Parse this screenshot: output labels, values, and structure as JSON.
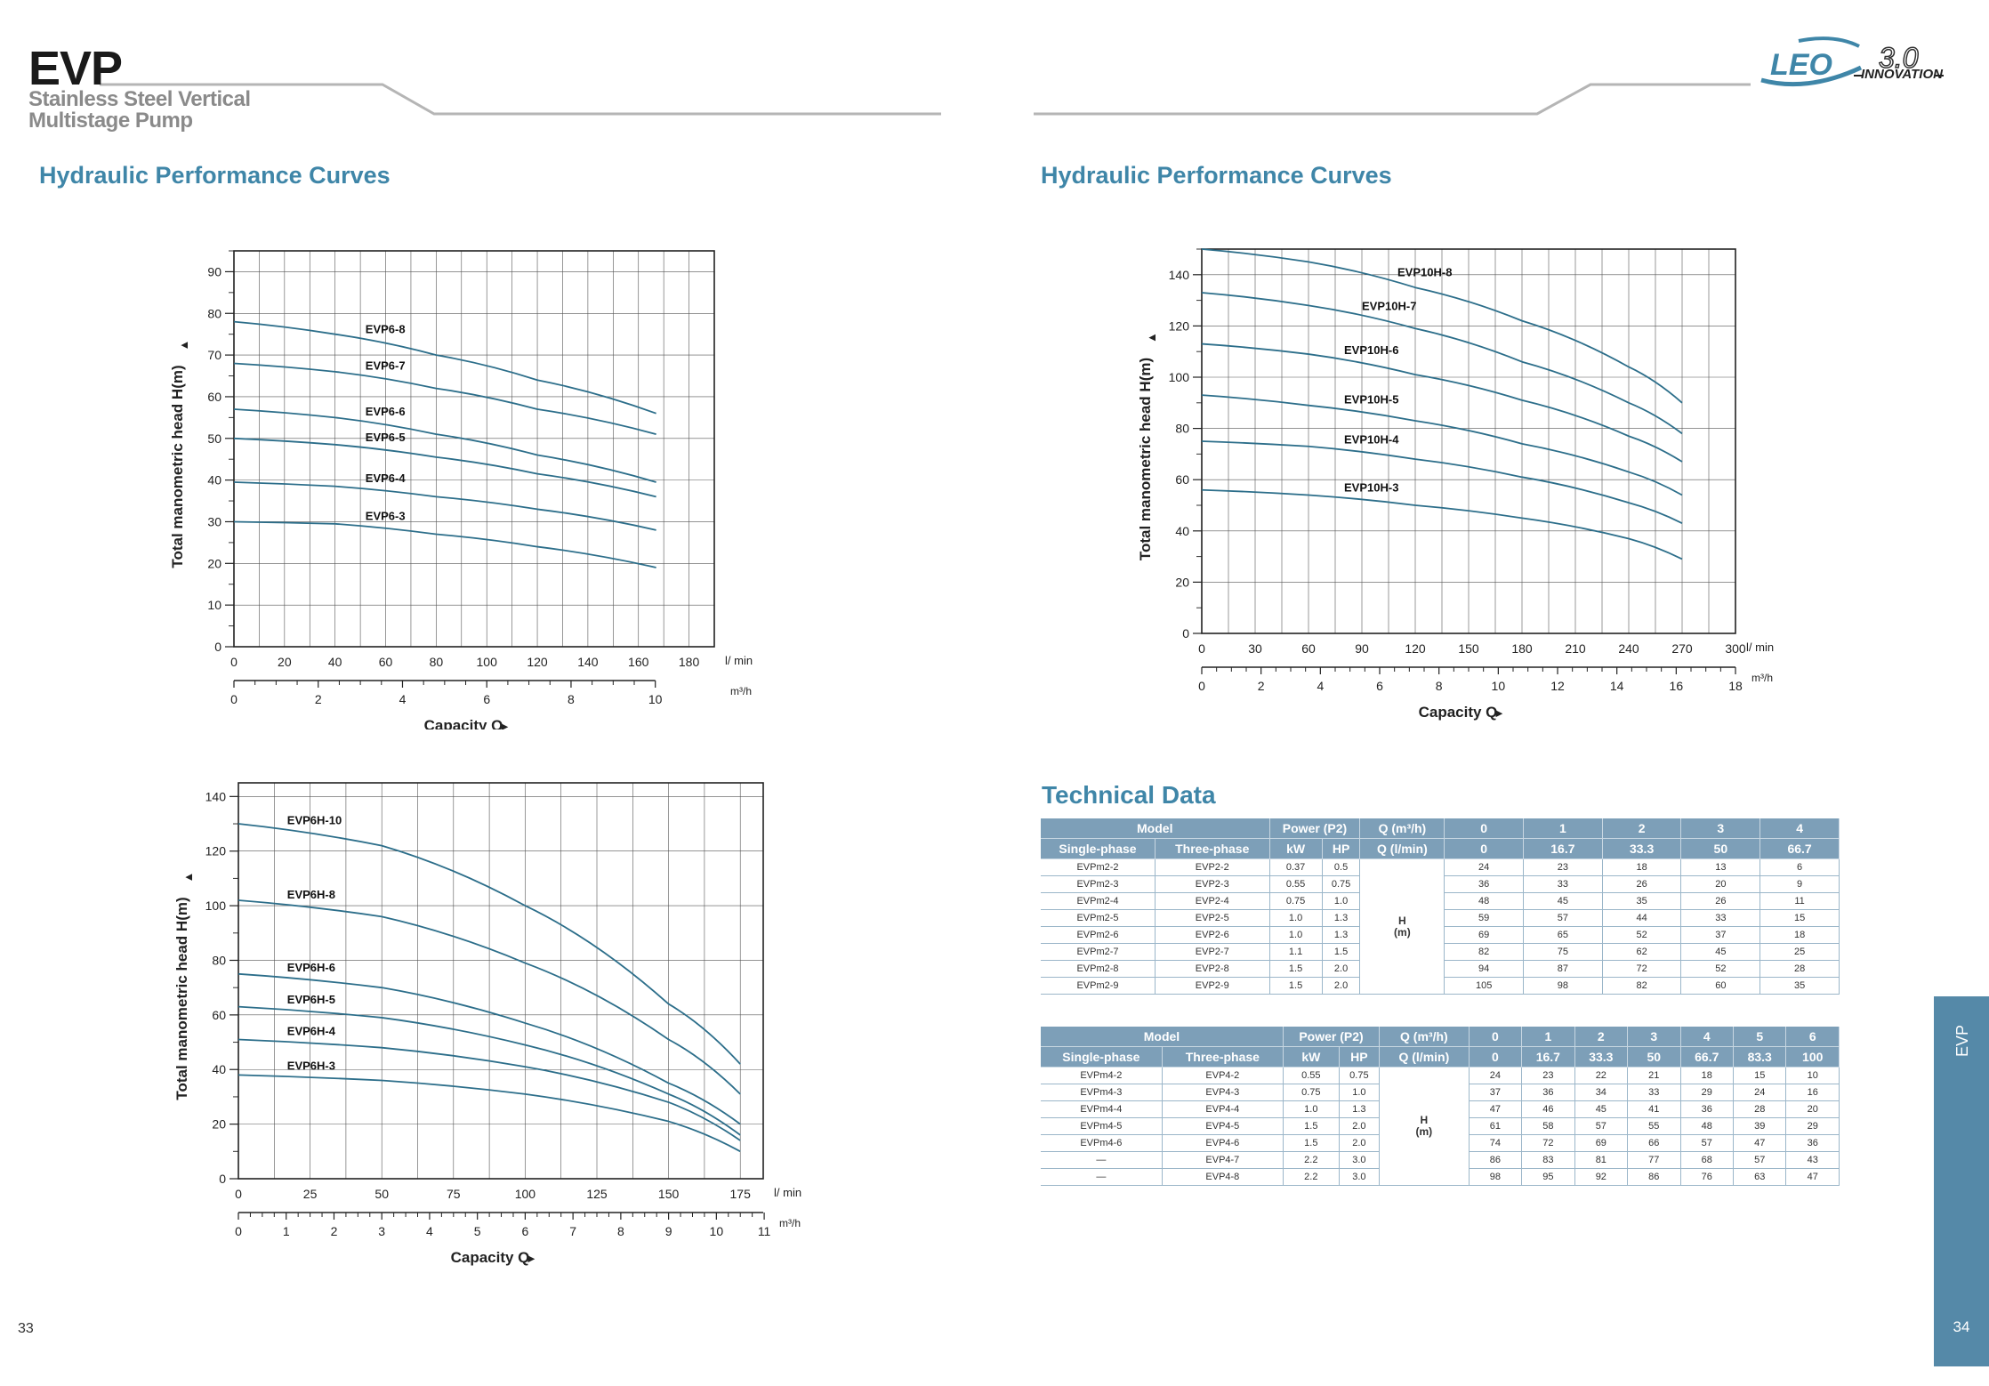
{
  "header": {
    "brand": "EVP",
    "subtitle_line1": "Stainless Steel Vertical",
    "subtitle_line2": "Multistage Pump",
    "logo_text": "LEO",
    "logo_version": "3.0",
    "logo_tagline": "INNOVATION"
  },
  "left_page": {
    "section_title": "Hydraulic Performance Curves",
    "page_number": "33"
  },
  "right_page": {
    "section_title": "Hydraulic Performance Curves",
    "technical_title": "Technical Data",
    "page_number": "34",
    "side_tab": "EVP"
  },
  "colors": {
    "accent": "#3f86a8",
    "curve": "#2c6e8a",
    "table_header": "#7d9fb8",
    "side_tab": "#5589a8"
  },
  "chart_data": [
    {
      "type": "line",
      "ylabel": "Total manometric head H(m)",
      "xlabel": "Capacity Q",
      "x_unit_primary": "l/ min",
      "x_unit_secondary": "m³/h",
      "xlim": [
        0,
        190
      ],
      "ylim": [
        0,
        95
      ],
      "x_ticks": [
        0,
        20,
        40,
        60,
        80,
        100,
        120,
        140,
        160,
        180
      ],
      "y_ticks": [
        0,
        10,
        20,
        30,
        40,
        50,
        60,
        70,
        80,
        90
      ],
      "secondary_ticks": [
        0,
        2,
        4,
        6,
        8,
        10
      ],
      "secondary_factor": 16.667,
      "grid": true,
      "series": [
        {
          "name": "EVP6-8",
          "x": [
            0,
            40,
            80,
            120,
            167
          ],
          "y": [
            78,
            75,
            70,
            64,
            56
          ]
        },
        {
          "name": "EVP6-7",
          "x": [
            0,
            40,
            80,
            120,
            167
          ],
          "y": [
            68,
            66,
            62,
            57,
            51
          ]
        },
        {
          "name": "EVP6-6",
          "x": [
            0,
            40,
            80,
            120,
            167
          ],
          "y": [
            57,
            55,
            51,
            46,
            39.5
          ]
        },
        {
          "name": "EVP6-5",
          "x": [
            0,
            40,
            80,
            120,
            167
          ],
          "y": [
            50,
            48.5,
            45.5,
            41.5,
            36
          ]
        },
        {
          "name": "EVP6-4",
          "x": [
            0,
            40,
            80,
            120,
            167
          ],
          "y": [
            39.5,
            38.5,
            36,
            33,
            28
          ]
        },
        {
          "name": "EVP6-3",
          "x": [
            0,
            40,
            80,
            120,
            167
          ],
          "y": [
            30,
            29.5,
            27,
            24,
            19
          ]
        }
      ]
    },
    {
      "type": "line",
      "ylabel": "Total manometric head H(m)",
      "xlabel": "Capacity Q",
      "x_unit_primary": "l/ min",
      "x_unit_secondary": "m³/h",
      "xlim": [
        0,
        300
      ],
      "ylim": [
        0,
        150
      ],
      "x_ticks": [
        0,
        30,
        60,
        90,
        120,
        150,
        180,
        210,
        240,
        270,
        300
      ],
      "y_ticks": [
        0,
        20,
        40,
        60,
        80,
        100,
        120,
        140
      ],
      "secondary_ticks": [
        0,
        2,
        4,
        6,
        8,
        10,
        12,
        14,
        16,
        18
      ],
      "secondary_factor": 16.667,
      "grid": true,
      "series": [
        {
          "name": "EVP10H-8",
          "x": [
            0,
            60,
            120,
            180,
            240,
            270
          ],
          "y": [
            150,
            145,
            135,
            122,
            104,
            90
          ]
        },
        {
          "name": "EVP10H-7",
          "x": [
            0,
            60,
            120,
            180,
            240,
            270
          ],
          "y": [
            133,
            128,
            119,
            106,
            90,
            78
          ]
        },
        {
          "name": "EVP10H-6",
          "x": [
            0,
            60,
            120,
            180,
            240,
            270
          ],
          "y": [
            113,
            109,
            101,
            91,
            77,
            67
          ]
        },
        {
          "name": "EVP10H-5",
          "x": [
            0,
            60,
            120,
            180,
            240,
            270
          ],
          "y": [
            93,
            89,
            83,
            74,
            63,
            54
          ]
        },
        {
          "name": "EVP10H-4",
          "x": [
            0,
            60,
            120,
            180,
            240,
            270
          ],
          "y": [
            75,
            73,
            68,
            61,
            51,
            43
          ]
        },
        {
          "name": "EVP10H-3",
          "x": [
            0,
            60,
            120,
            180,
            240,
            270
          ],
          "y": [
            56,
            54,
            50,
            45,
            37,
            29
          ]
        }
      ]
    },
    {
      "type": "line",
      "ylabel": "Total manometric head H(m)",
      "xlabel": "Capacity Q",
      "x_unit_primary": "l/ min",
      "x_unit_secondary": "m³/h",
      "xlim": [
        0,
        183
      ],
      "ylim": [
        0,
        145
      ],
      "x_ticks": [
        0,
        25,
        50,
        75,
        100,
        125,
        150,
        175
      ],
      "y_ticks": [
        0,
        20,
        40,
        60,
        80,
        100,
        120,
        140
      ],
      "secondary_ticks": [
        0,
        1,
        2,
        3,
        4,
        5,
        6,
        7,
        8,
        9,
        10,
        11
      ],
      "secondary_factor": 16.667,
      "grid": true,
      "series": [
        {
          "name": "EVP6H-10",
          "x": [
            0,
            50,
            100,
            150,
            175
          ],
          "y": [
            130,
            122,
            100,
            64,
            42
          ]
        },
        {
          "name": "EVP6H-8",
          "x": [
            0,
            50,
            100,
            150,
            175
          ],
          "y": [
            102,
            96,
            79,
            51,
            31
          ]
        },
        {
          "name": "EVP6H-6",
          "x": [
            0,
            50,
            100,
            150,
            175
          ],
          "y": [
            75,
            70,
            57,
            35,
            20
          ]
        },
        {
          "name": "EVP6H-5",
          "x": [
            0,
            50,
            100,
            150,
            175
          ],
          "y": [
            63,
            59,
            49,
            31,
            16
          ]
        },
        {
          "name": "EVP6H-4",
          "x": [
            0,
            50,
            100,
            150,
            175
          ],
          "y": [
            51,
            48,
            41,
            28,
            14
          ]
        },
        {
          "name": "EVP6H-3",
          "x": [
            0,
            50,
            100,
            150,
            175
          ],
          "y": [
            38,
            36,
            31,
            21,
            10
          ]
        }
      ]
    }
  ],
  "tables": [
    {
      "head1": {
        "model": "Model",
        "power": "Power (P2)",
        "q": "Q (m³/h)",
        "cols": [
          "0",
          "1",
          "2",
          "3",
          "4"
        ]
      },
      "head2": {
        "single": "Single-phase",
        "three": "Three-phase",
        "kw": "kW",
        "hp": "HP",
        "q": "Q (l/min)",
        "cols": [
          "0",
          "16.7",
          "33.3",
          "50",
          "66.7"
        ]
      },
      "hlabel": "H",
      "hunit": "(m)",
      "rows": [
        {
          "single": "EVPm2-2",
          "three": "EVP2-2",
          "kw": "0.37",
          "hp": "0.5",
          "h": [
            "24",
            "23",
            "18",
            "13",
            "6"
          ]
        },
        {
          "single": "EVPm2-3",
          "three": "EVP2-3",
          "kw": "0.55",
          "hp": "0.75",
          "h": [
            "36",
            "33",
            "26",
            "20",
            "9"
          ]
        },
        {
          "single": "EVPm2-4",
          "three": "EVP2-4",
          "kw": "0.75",
          "hp": "1.0",
          "h": [
            "48",
            "45",
            "35",
            "26",
            "11"
          ]
        },
        {
          "single": "EVPm2-5",
          "three": "EVP2-5",
          "kw": "1.0",
          "hp": "1.3",
          "h": [
            "59",
            "57",
            "44",
            "33",
            "15"
          ]
        },
        {
          "single": "EVPm2-6",
          "three": "EVP2-6",
          "kw": "1.0",
          "hp": "1.3",
          "h": [
            "69",
            "65",
            "52",
            "37",
            "18"
          ]
        },
        {
          "single": "EVPm2-7",
          "three": "EVP2-7",
          "kw": "1.1",
          "hp": "1.5",
          "h": [
            "82",
            "75",
            "62",
            "45",
            "25"
          ]
        },
        {
          "single": "EVPm2-8",
          "three": "EVP2-8",
          "kw": "1.5",
          "hp": "2.0",
          "h": [
            "94",
            "87",
            "72",
            "52",
            "28"
          ]
        },
        {
          "single": "EVPm2-9",
          "three": "EVP2-9",
          "kw": "1.5",
          "hp": "2.0",
          "h": [
            "105",
            "98",
            "82",
            "60",
            "35"
          ]
        }
      ]
    },
    {
      "head1": {
        "model": "Model",
        "power": "Power (P2)",
        "q": "Q (m³/h)",
        "cols": [
          "0",
          "1",
          "2",
          "3",
          "4",
          "5",
          "6"
        ]
      },
      "head2": {
        "single": "Single-phase",
        "three": "Three-phase",
        "kw": "kW",
        "hp": "HP",
        "q": "Q (l/min)",
        "cols": [
          "0",
          "16.7",
          "33.3",
          "50",
          "66.7",
          "83.3",
          "100"
        ]
      },
      "hlabel": "H",
      "hunit": "(m)",
      "rows": [
        {
          "single": "EVPm4-2",
          "three": "EVP4-2",
          "kw": "0.55",
          "hp": "0.75",
          "h": [
            "24",
            "23",
            "22",
            "21",
            "18",
            "15",
            "10"
          ]
        },
        {
          "single": "EVPm4-3",
          "three": "EVP4-3",
          "kw": "0.75",
          "hp": "1.0",
          "h": [
            "37",
            "36",
            "34",
            "33",
            "29",
            "24",
            "16"
          ]
        },
        {
          "single": "EVPm4-4",
          "three": "EVP4-4",
          "kw": "1.0",
          "hp": "1.3",
          "h": [
            "47",
            "46",
            "45",
            "41",
            "36",
            "28",
            "20"
          ]
        },
        {
          "single": "EVPm4-5",
          "three": "EVP4-5",
          "kw": "1.5",
          "hp": "2.0",
          "h": [
            "61",
            "58",
            "57",
            "55",
            "48",
            "39",
            "29"
          ]
        },
        {
          "single": "EVPm4-6",
          "three": "EVP4-6",
          "kw": "1.5",
          "hp": "2.0",
          "h": [
            "74",
            "72",
            "69",
            "66",
            "57",
            "47",
            "36"
          ]
        },
        {
          "single": "—",
          "three": "EVP4-7",
          "kw": "2.2",
          "hp": "3.0",
          "h": [
            "86",
            "83",
            "81",
            "77",
            "68",
            "57",
            "43"
          ]
        },
        {
          "single": "—",
          "three": "EVP4-8",
          "kw": "2.2",
          "hp": "3.0",
          "h": [
            "98",
            "95",
            "92",
            "86",
            "76",
            "63",
            "47"
          ]
        }
      ]
    }
  ]
}
